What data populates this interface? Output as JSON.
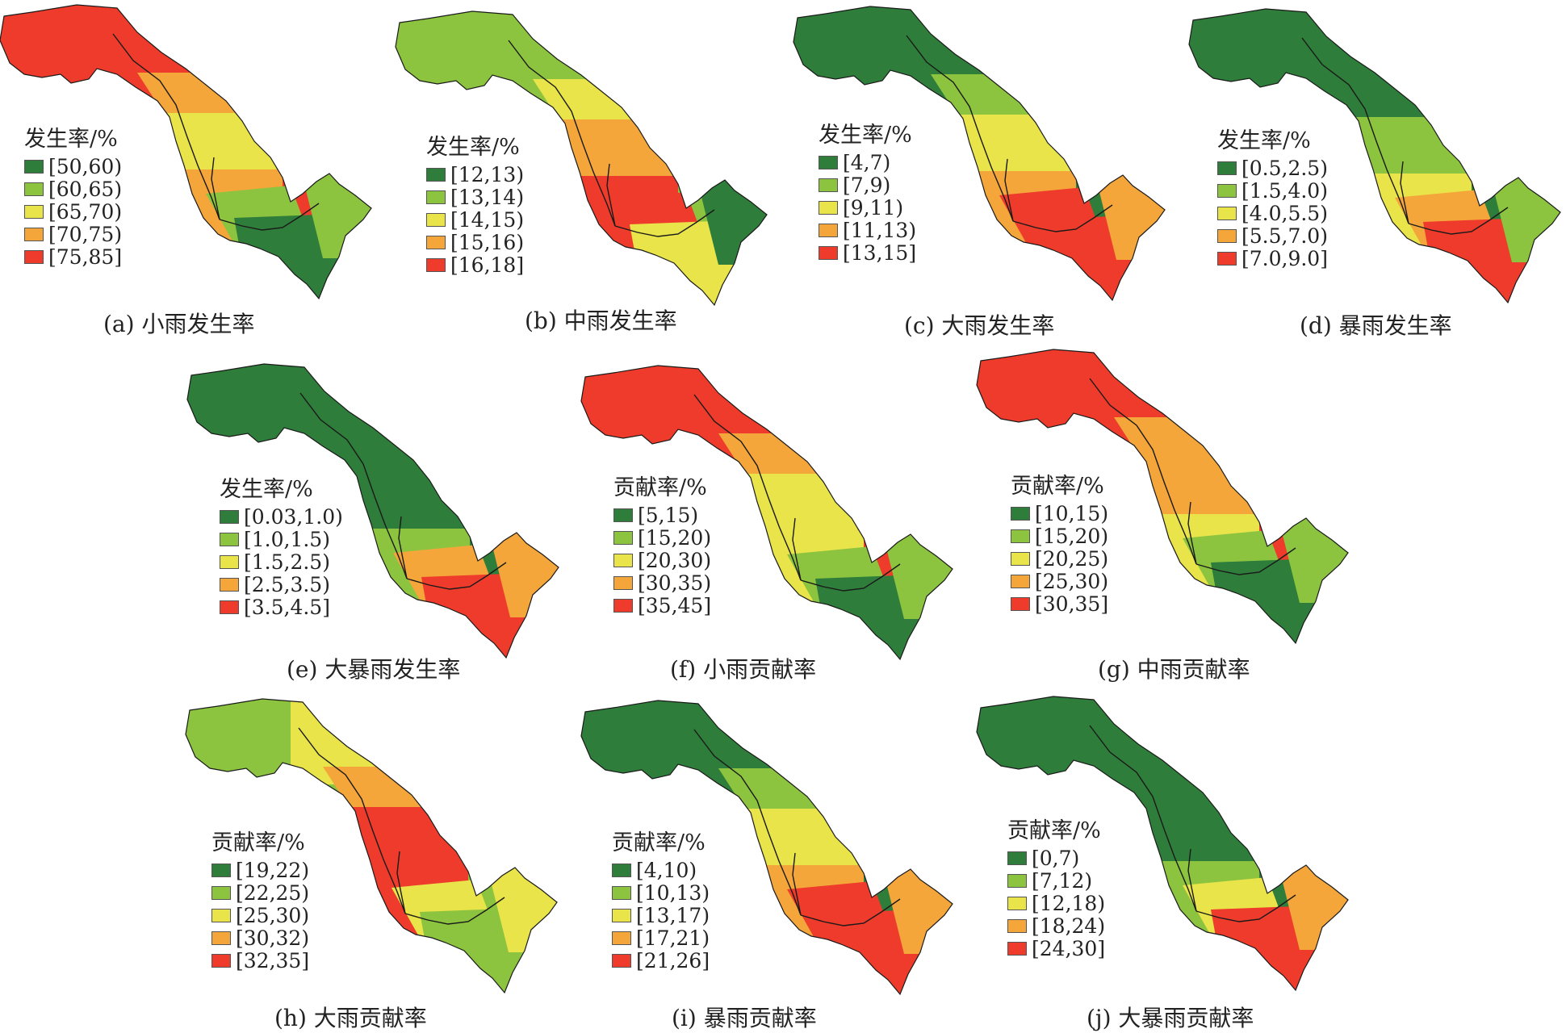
{
  "colors": {
    "dark_green": "#2e7d3a",
    "light_green": "#8cc43f",
    "yellow": "#e8e44a",
    "orange": "#f4a63a",
    "red": "#ee3b2b",
    "border": "#1a1a1a"
  },
  "panels": [
    {
      "caption": "(a) 小雨发生率",
      "legend_title": "发生率/%",
      "classes": [
        "[50,60)",
        "[60,65)",
        "[65,70)",
        "[70,75)",
        "[75,85]"
      ],
      "zones": [
        "red",
        "red",
        "orange",
        "yellow",
        "orange",
        "light_green",
        "dark_green",
        "light_green"
      ]
    },
    {
      "caption": "(b) 中雨发生率",
      "legend_title": "发生率/%",
      "classes": [
        "[12,13)",
        "[13,14)",
        "[14,15)",
        "[15,16)",
        "[16,18]"
      ],
      "zones": [
        "light_green",
        "light_green",
        "yellow",
        "orange",
        "red",
        "red",
        "yellow",
        "dark_green"
      ]
    },
    {
      "caption": "(c) 大雨发生率",
      "legend_title": "发生率/%",
      "classes": [
        "[4,7)",
        "[7,9)",
        "[9,11)",
        "[11,13)",
        "[13,15]"
      ],
      "zones": [
        "dark_green",
        "dark_green",
        "light_green",
        "yellow",
        "orange",
        "red",
        "red",
        "orange"
      ]
    },
    {
      "caption": "(d) 暴雨发生率",
      "legend_title": "发生率/%",
      "classes": [
        "[0.5,2.5)",
        "[1.5,4.0)",
        "[4.0,5.5)",
        "[5.5,7.0)",
        "[7.0,9.0]"
      ],
      "zones": [
        "dark_green",
        "dark_green",
        "dark_green",
        "light_green",
        "yellow",
        "orange",
        "red",
        "light_green"
      ]
    },
    {
      "caption": "(e) 大暴雨发生率",
      "legend_title": "发生率/%",
      "classes": [
        "[0.03,1.0)",
        "[1.0,1.5)",
        "[1.5,2.5)",
        "[2.5,3.5)",
        "[3.5,4.5]"
      ],
      "zones": [
        "dark_green",
        "dark_green",
        "dark_green",
        "dark_green",
        "light_green",
        "orange",
        "red",
        "orange"
      ]
    },
    {
      "caption": "(f) 小雨贡献率",
      "legend_title": "贡献率/%",
      "classes": [
        "[5,15)",
        "[15,20)",
        "[20,30)",
        "[30,35)",
        "[35,45]"
      ],
      "zones": [
        "red",
        "red",
        "orange",
        "yellow",
        "yellow",
        "light_green",
        "dark_green",
        "light_green"
      ]
    },
    {
      "caption": "(g) 中雨贡献率",
      "legend_title": "贡献率/%",
      "classes": [
        "[10,15)",
        "[15,20)",
        "[20,25)",
        "[25,30)",
        "[30,35]"
      ],
      "zones": [
        "red",
        "red",
        "orange",
        "orange",
        "yellow",
        "light_green",
        "dark_green",
        "light_green"
      ]
    },
    {
      "caption": "(h) 大雨贡献率",
      "legend_title": "贡献率/%",
      "classes": [
        "[19,22)",
        "[22,25)",
        "[25,30)",
        "[30,32)",
        "[32,35]"
      ],
      "zones": [
        "light_green",
        "yellow",
        "orange",
        "red",
        "red",
        "yellow",
        "light_green",
        "yellow"
      ]
    },
    {
      "caption": "(i) 暴雨贡献率",
      "legend_title": "贡献率/%",
      "classes": [
        "[4,10)",
        "[10,13)",
        "[13,17)",
        "[17,21)",
        "[21,26]"
      ],
      "zones": [
        "dark_green",
        "dark_green",
        "light_green",
        "yellow",
        "orange",
        "red",
        "red",
        "orange"
      ]
    },
    {
      "caption": "(j) 大暴雨贡献率",
      "legend_title": "贡献率/%",
      "classes": [
        "[0,7)",
        "[7,12)",
        "[12,18)",
        "[18,24)",
        "[24,30]"
      ],
      "zones": [
        "dark_green",
        "dark_green",
        "dark_green",
        "dark_green",
        "light_green",
        "yellow",
        "red",
        "orange"
      ]
    }
  ]
}
